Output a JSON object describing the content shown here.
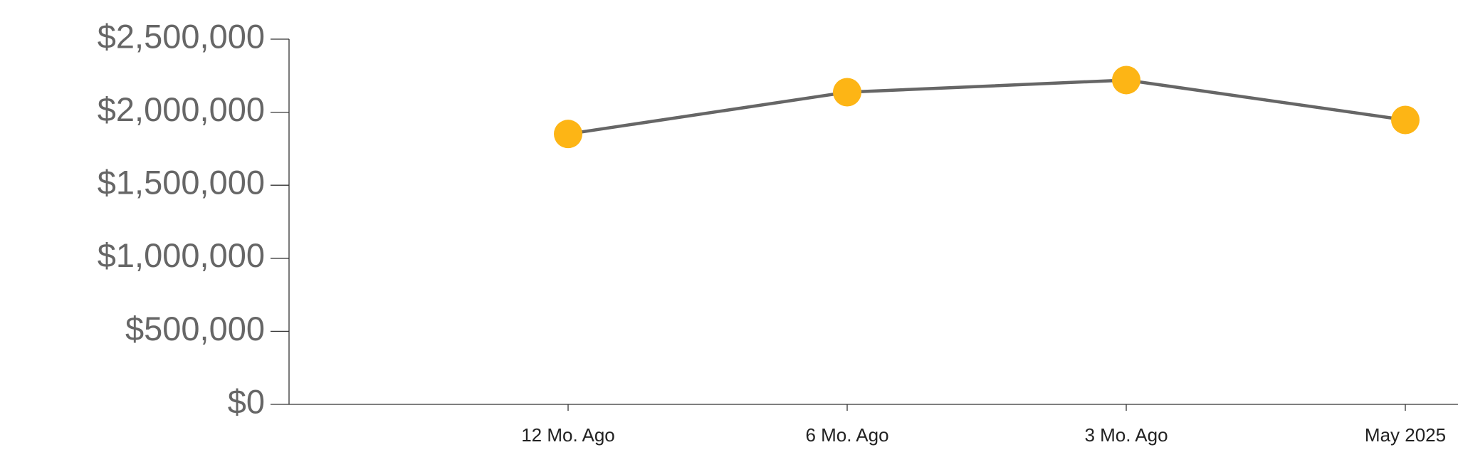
{
  "chart_data": {
    "type": "line",
    "categories": [
      null,
      "12 Mo. Ago",
      "6 Mo. Ago",
      "3 Mo. Ago",
      "May 2025"
    ],
    "values": [
      null,
      1851000,
      2137000,
      2220000,
      1947000
    ],
    "line_color": "#666666",
    "marker_color": "#fdb515",
    "ylim": [
      0,
      2500000
    ],
    "yticks": [
      {
        "value": 0,
        "label": "$0"
      },
      {
        "value": 500000,
        "label": "$500,000"
      },
      {
        "value": 1000000,
        "label": "$1,000,000"
      },
      {
        "value": 1500000,
        "label": "$1,500,000"
      },
      {
        "value": 2000000,
        "label": "$2,000,000"
      },
      {
        "value": 2500000,
        "label": "$2,500,000"
      }
    ],
    "grid": false
  }
}
